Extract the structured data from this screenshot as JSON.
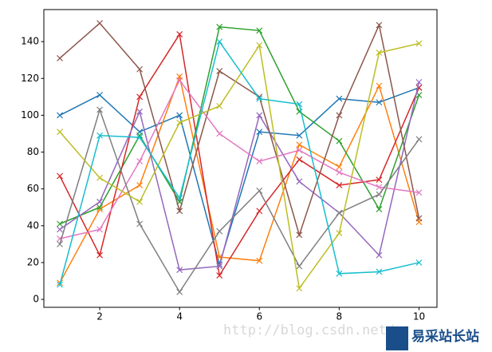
{
  "chart_data": {
    "type": "line",
    "marker": "x",
    "x": [
      1,
      2,
      3,
      4,
      5,
      6,
      7,
      8,
      9,
      10
    ],
    "series": [
      {
        "color": "#1f77b4",
        "values": [
          100,
          111,
          91,
          100,
          19,
          91,
          89,
          109,
          107,
          115
        ]
      },
      {
        "color": "#ff7f0e",
        "values": [
          9,
          49,
          62,
          121,
          23,
          21,
          84,
          72,
          116,
          42
        ]
      },
      {
        "color": "#2ca02c",
        "values": [
          41,
          50,
          89,
          53,
          148,
          146,
          102,
          86,
          49,
          111
        ]
      },
      {
        "color": "#d62728",
        "values": [
          67,
          24,
          110,
          144,
          13,
          48,
          76,
          62,
          65,
          115
        ]
      },
      {
        "color": "#9467bd",
        "values": [
          38,
          53,
          102,
          16,
          18,
          100,
          64,
          47,
          24,
          118
        ]
      },
      {
        "color": "#8c564b",
        "values": [
          131,
          150,
          125,
          48,
          124,
          110,
          35,
          100,
          149,
          44
        ]
      },
      {
        "color": "#e377c2",
        "values": [
          33,
          38,
          75,
          119,
          90,
          75,
          81,
          69,
          61,
          58
        ]
      },
      {
        "color": "#7f7f7f",
        "values": [
          30,
          103,
          41,
          4,
          37,
          59,
          18,
          47,
          57,
          87
        ]
      },
      {
        "color": "#bcbd22",
        "values": [
          91,
          66,
          53,
          96,
          105,
          138,
          6,
          36,
          134,
          139
        ]
      },
      {
        "color": "#17becf",
        "values": [
          8,
          89,
          88,
          55,
          140,
          109,
          106,
          14,
          15,
          20
        ]
      }
    ],
    "xlim": [
      0.6,
      10.45
    ],
    "xticks": [
      2,
      4,
      6,
      8,
      10
    ],
    "ylim": [
      -4.3,
      157.4
    ],
    "yticks": [
      0,
      20,
      40,
      60,
      80,
      100,
      120,
      140
    ],
    "grid": false
  },
  "watermark": "http://blog.csdn.net/",
  "logo": "易采站长站"
}
